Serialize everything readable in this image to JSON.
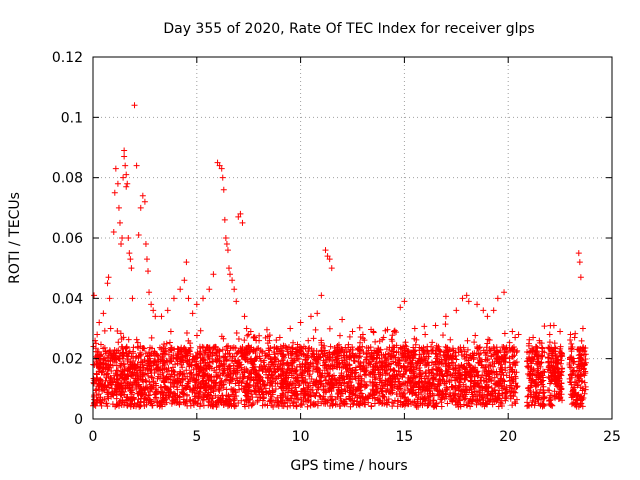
{
  "chart_data": {
    "type": "scatter",
    "title": "Day 355 of 2020, Rate Of TEC Index for receiver glps",
    "xlabel": "GPS time / hours",
    "ylabel": "ROTI / TECUs",
    "xlim": [
      0,
      25
    ],
    "ylim": [
      0,
      0.12
    ],
    "xticks": [
      0,
      5,
      10,
      15,
      20,
      25
    ],
    "xtick_labels": [
      "0",
      "5",
      "10",
      "15",
      "20",
      "25"
    ],
    "yticks": [
      0,
      0.02,
      0.04,
      0.06,
      0.08,
      0.1,
      0.12
    ],
    "ytick_labels": [
      "0",
      "0.02",
      "0.04",
      "0.06",
      "0.08",
      "0.1",
      "0.12"
    ],
    "grid": true,
    "grid_style": "dotted",
    "marker": "plus",
    "marker_color": "#ff0000",
    "series": [
      {
        "x": [
          0.05,
          0.1,
          0.2,
          0.3,
          0.5,
          0.7,
          0.75,
          0.8,
          0.85,
          1.0,
          1.05,
          1.1,
          1.2,
          1.25,
          1.3,
          1.35,
          1.4,
          1.45,
          1.5,
          1.5,
          1.55,
          1.6,
          1.6,
          1.65,
          1.7,
          1.75,
          1.8,
          1.85,
          1.9,
          2.0,
          2.1,
          2.2,
          2.3,
          2.4,
          2.5,
          2.55,
          2.6,
          2.65,
          2.7,
          2.8,
          2.9,
          3.0,
          3.3,
          3.6,
          3.9,
          4.2,
          4.4,
          4.5,
          4.6,
          4.8,
          5.0,
          5.3,
          5.6,
          5.8,
          6.0,
          6.1,
          6.2,
          6.25,
          6.3,
          6.35,
          6.4,
          6.45,
          6.5,
          6.55,
          6.6,
          6.7,
          6.8,
          6.9,
          7.0,
          7.1,
          7.2,
          7.3,
          7.4,
          7.5,
          7.6,
          7.8,
          8.0,
          8.5,
          9.0,
          9.5,
          10.0,
          10.5,
          10.8,
          11.0,
          11.2,
          11.3,
          11.4,
          11.5,
          12.0,
          12.5,
          13.0,
          13.5,
          14.0,
          14.5,
          14.8,
          15.0,
          15.5,
          16.0,
          16.5,
          17.0,
          17.5,
          17.8,
          18.0,
          18.1,
          18.5,
          18.8,
          19.0,
          19.3,
          19.5,
          19.8,
          20.2,
          20.5,
          21.0,
          21.2,
          21.5,
          22.0,
          22.2,
          22.5,
          23.0,
          23.2,
          23.4,
          23.45,
          23.5,
          23.6
        ],
        "y": [
          0.041,
          0.026,
          0.028,
          0.032,
          0.035,
          0.045,
          0.047,
          0.04,
          0.03,
          0.062,
          0.075,
          0.083,
          0.078,
          0.07,
          0.065,
          0.058,
          0.06,
          0.08,
          0.089,
          0.087,
          0.084,
          0.077,
          0.081,
          0.078,
          0.06,
          0.055,
          0.053,
          0.05,
          0.04,
          0.104,
          0.084,
          0.061,
          0.07,
          0.074,
          0.072,
          0.058,
          0.053,
          0.049,
          0.042,
          0.038,
          0.036,
          0.034,
          0.034,
          0.036,
          0.04,
          0.043,
          0.046,
          0.052,
          0.04,
          0.035,
          0.038,
          0.04,
          0.043,
          0.048,
          0.085,
          0.084,
          0.083,
          0.08,
          0.076,
          0.066,
          0.06,
          0.058,
          0.056,
          0.05,
          0.048,
          0.046,
          0.043,
          0.039,
          0.067,
          0.068,
          0.065,
          0.034,
          0.03,
          0.028,
          0.029,
          0.027,
          0.026,
          0.026,
          0.027,
          0.03,
          0.032,
          0.034,
          0.035,
          0.041,
          0.056,
          0.054,
          0.053,
          0.05,
          0.033,
          0.029,
          0.028,
          0.029,
          0.027,
          0.029,
          0.037,
          0.039,
          0.03,
          0.028,
          0.031,
          0.034,
          0.036,
          0.04,
          0.041,
          0.039,
          0.038,
          0.036,
          0.034,
          0.036,
          0.04,
          0.042,
          0.029,
          0.028,
          0.025,
          0.027,
          0.026,
          0.028,
          0.031,
          0.029,
          0.028,
          0.027,
          0.055,
          0.052,
          0.047,
          0.03
        ]
      }
    ]
  }
}
